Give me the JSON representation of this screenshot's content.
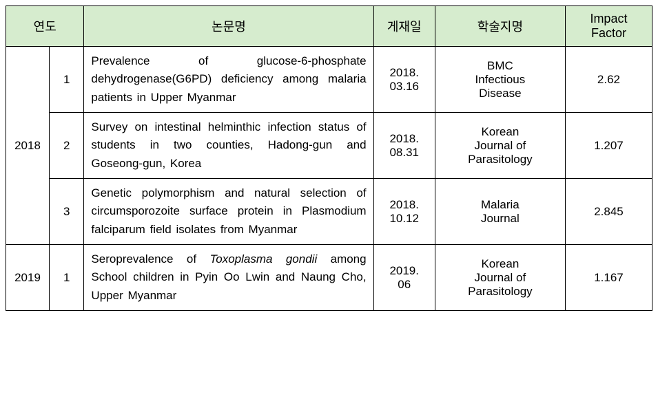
{
  "headers": {
    "year": "연도",
    "title": "논문명",
    "date": "게재일",
    "journal": "학술지명",
    "impact": "Impact Factor"
  },
  "rows": [
    {
      "year": "2018",
      "year_rowspan": 3,
      "idx": "1",
      "title_html": "Prevalence of glucose-6-phosphate dehydrogenase(G6PD) deficiency among malaria patients in Upper Myanmar",
      "date_line1": "2018.",
      "date_line2": "03.16",
      "journal_html": "BMC<br>Infectious<br>Disease",
      "impact": "2.62"
    },
    {
      "idx": "2",
      "title_html": "Survey on intestinal helminthic infection status of students in two counties, Hadong-gun and Goseong-gun, Korea",
      "date_line1": "2018.",
      "date_line2": "08.31",
      "journal_html": "Korean<br>Journal of<br>Parasitology",
      "impact": "1.207"
    },
    {
      "idx": "3",
      "title_html": "Genetic polymorphism and natural selection of circumsporozoite surface protein in Plasmodium falciparum field isolates from Myanmar",
      "date_line1": "2018.",
      "date_line2": "10.12",
      "journal_html": "Malaria<br>Journal",
      "impact": "2.845"
    },
    {
      "year": "2019",
      "year_rowspan": 1,
      "idx": "1",
      "title_html": "Seroprevalence of <span class=\"italic\">Toxoplasma gondii</span> among School children in Pyin Oo Lwin and Naung Cho, Upper Myanmar",
      "date_line1": "2019.",
      "date_line2": "06",
      "journal_html": "Korean<br>Journal of<br>Parasitology",
      "impact": "1.167"
    }
  ]
}
